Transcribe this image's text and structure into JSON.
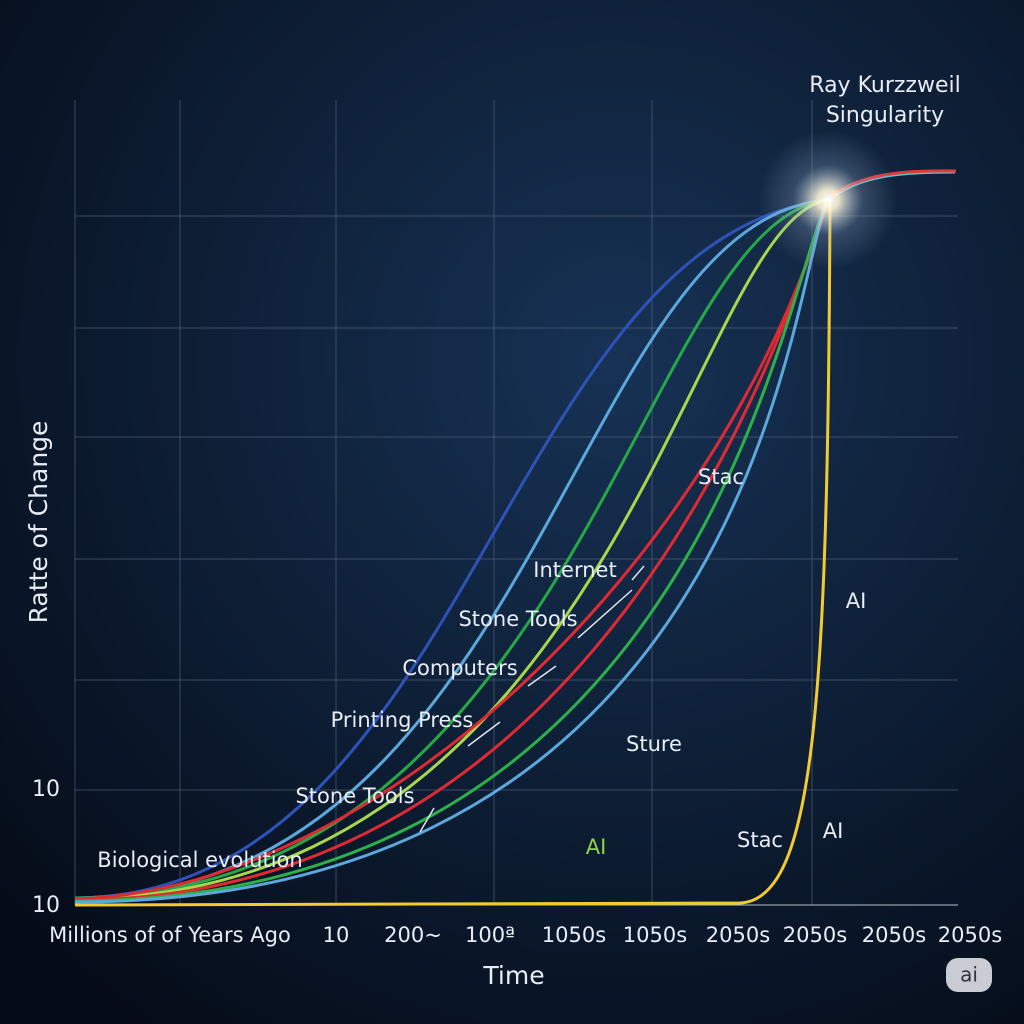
{
  "title": [
    "Ray Kurzzweil",
    "Singularity"
  ],
  "y_axis_label": "Ratte of Change",
  "x_axis_label": "Time",
  "y_tick_labels": [
    "10",
    "10"
  ],
  "x_tick_labels": [
    "Millions of of Years Ago",
    "10",
    "200~",
    "100ª",
    "1050s",
    "1050s",
    "2050s",
    "2050s",
    "2050s",
    "2050s"
  ],
  "annotations": [
    "Stac",
    "Internet",
    "Stone Tools",
    "Computers",
    "Printing Press",
    "Sture",
    "Stone Tools",
    "Biological evolution",
    "AI",
    "Stac",
    "AI",
    "AI"
  ],
  "badge": "ai"
}
